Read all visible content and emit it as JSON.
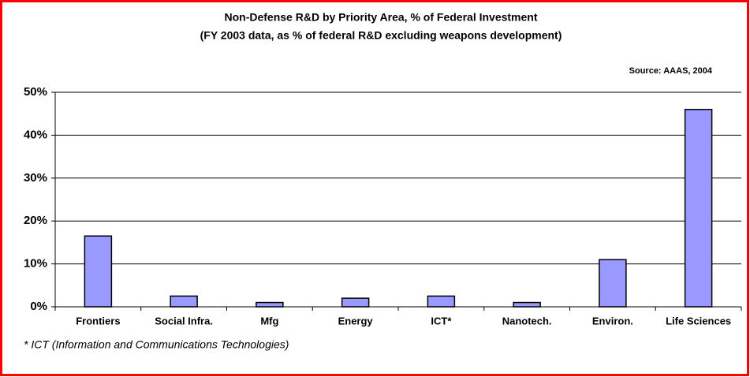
{
  "chart_data": {
    "type": "bar",
    "title": "Non-Defense R&D by Priority Area, % of Federal Investment",
    "subtitle": "(FY 2003 data, as % of federal R&D excluding weapons development)",
    "source": "Source: AAAS, 2004",
    "footnote": "* ICT (Information and Communications Technologies)",
    "categories": [
      "Frontiers",
      "Social Infra.",
      "Mfg",
      "Energy",
      "ICT*",
      "Nanotech.",
      "Environ.",
      "Life Sciences"
    ],
    "values": [
      16.5,
      2.5,
      1,
      2,
      2.5,
      1,
      11,
      46
    ],
    "color": "#9999ff",
    "ylim": [
      0,
      50
    ],
    "yticks": [
      {
        "value": 0,
        "label": "0%"
      },
      {
        "value": 10,
        "label": "10%"
      },
      {
        "value": 20,
        "label": "20%"
      },
      {
        "value": 30,
        "label": "30%"
      },
      {
        "value": 40,
        "label": "40%"
      },
      {
        "value": 50,
        "label": "50%"
      }
    ],
    "grid": true
  }
}
